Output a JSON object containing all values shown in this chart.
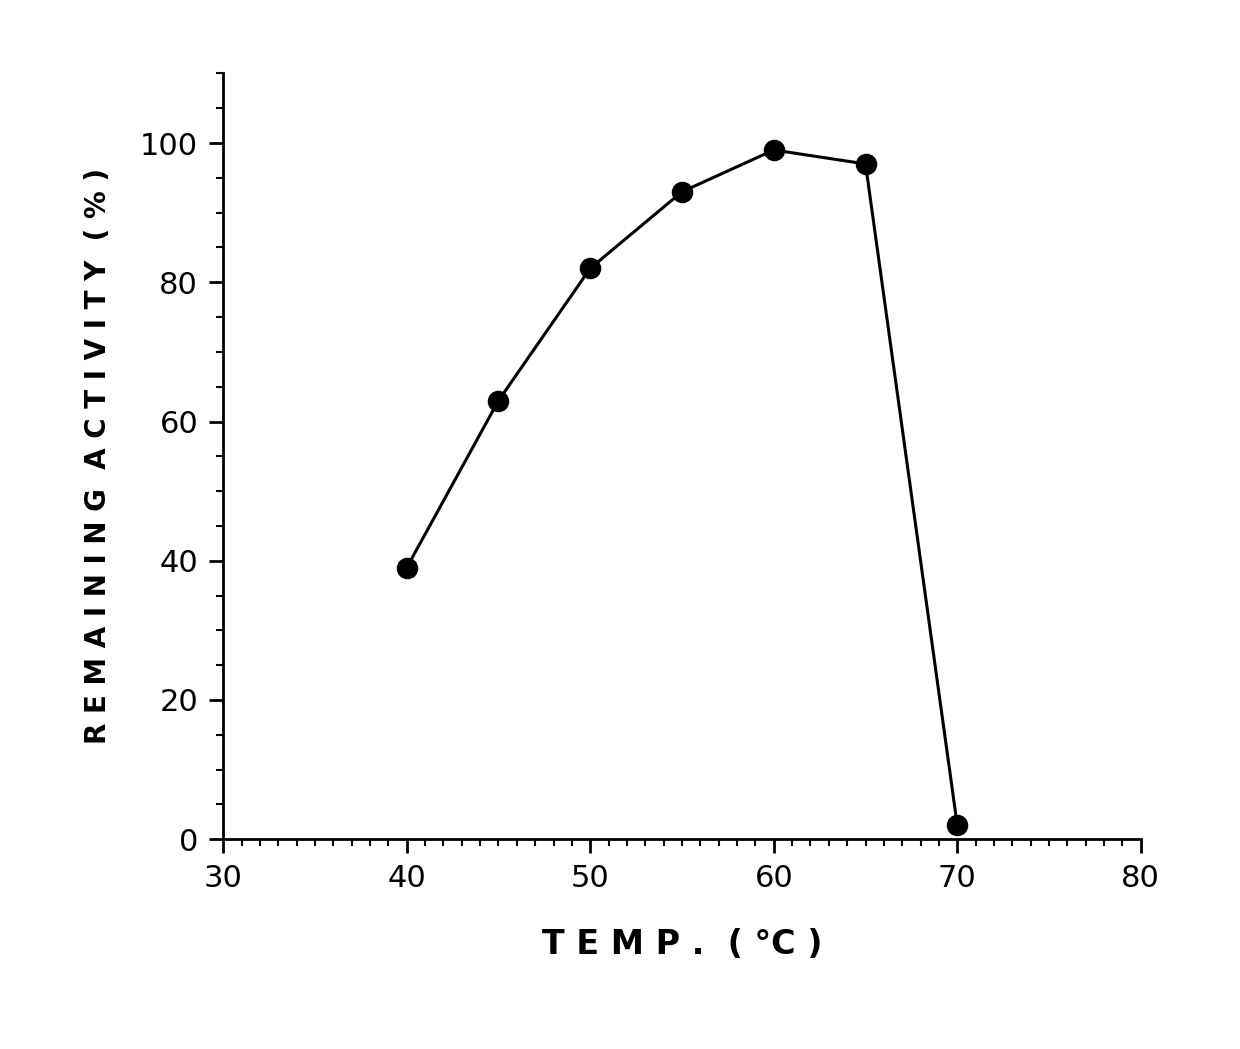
{
  "x": [
    40,
    45,
    50,
    55,
    60,
    65,
    70
  ],
  "y": [
    39,
    63,
    82,
    93,
    99,
    97,
    2
  ],
  "xlim": [
    30,
    80
  ],
  "ylim": [
    0,
    110
  ],
  "xticks": [
    30,
    40,
    50,
    60,
    70,
    80
  ],
  "yticks": [
    0,
    20,
    40,
    60,
    80,
    100
  ],
  "xlabel": "T E M P .  ( °C )",
  "ylabel": "R E M A I N I N G  A C T I V I T Y  ( % )",
  "line_color": "#000000",
  "marker_color": "#000000",
  "marker_size": 14,
  "line_width": 2.2,
  "background_color": "#ffffff",
  "xlabel_fontsize": 24,
  "ylabel_fontsize": 20,
  "tick_fontsize": 22,
  "spine_linewidth": 2.0
}
